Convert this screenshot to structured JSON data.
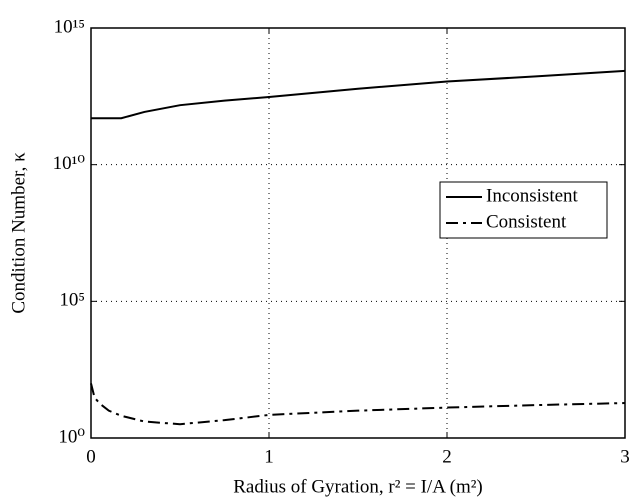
{
  "chart_data": {
    "type": "line",
    "xlabel": "Radius of Gyration, r² = I/A (m²)",
    "ylabel": "Condition Number, κ",
    "x": [
      0,
      0.02,
      0.05,
      0.1,
      0.17,
      0.3,
      0.5,
      0.75,
      1,
      1.5,
      2,
      2.5,
      3
    ],
    "series": [
      {
        "name": "Inconsistent",
        "color": "#000000",
        "style": "solid",
        "values": [
          500000000000,
          500000000000,
          500000000000,
          500000000000,
          500000000000,
          850000000000,
          1500000000000,
          2200000000000,
          3000000000000,
          6000000000000,
          11000000000000,
          17000000000000,
          27000000000000
        ]
      },
      {
        "name": "Consistent",
        "color": "#000000",
        "style": "dashdot",
        "values": [
          100,
          30,
          18,
          10,
          6.5,
          4,
          3.2,
          4.5,
          7,
          10,
          13,
          16,
          19
        ]
      }
    ],
    "xlim": [
      0,
      3
    ],
    "xticks": [
      0,
      1,
      2,
      3
    ],
    "ylim": [
      1,
      1000000000000000
    ],
    "log_y": true,
    "yticks": [
      {
        "value": 1,
        "label": "10⁰"
      },
      {
        "value": 100000,
        "label": "10⁵"
      },
      {
        "value": 10000000000,
        "label": "10¹⁰"
      },
      {
        "value": 1000000000000000,
        "label": "10¹⁵"
      }
    ],
    "grid": true,
    "legend": "center right"
  }
}
